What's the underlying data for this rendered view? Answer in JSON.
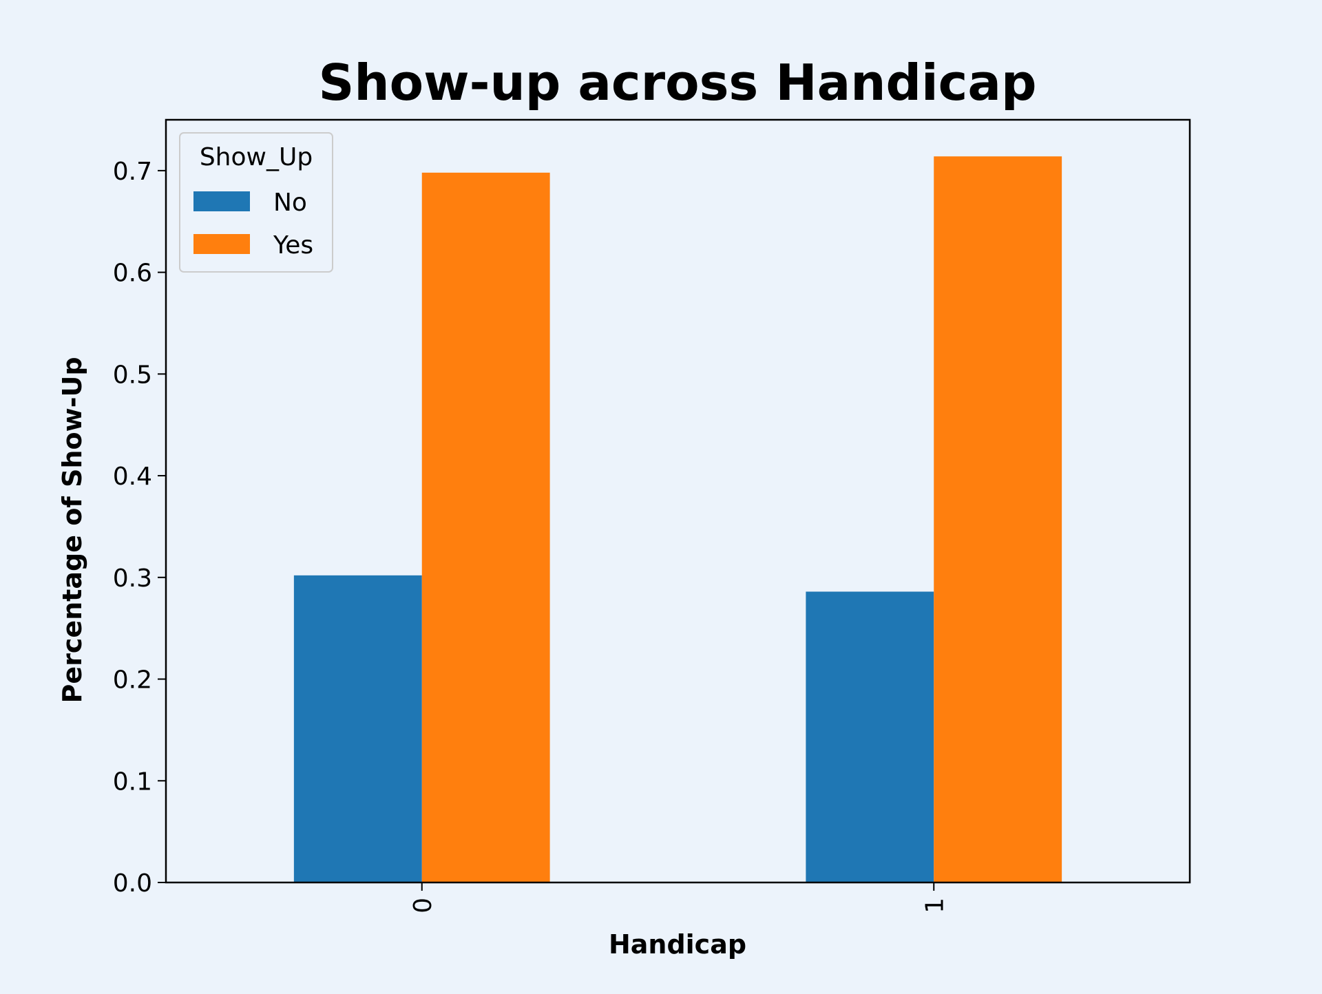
{
  "chart_data": {
    "type": "bar",
    "title": "Show-up across Handicap",
    "xlabel": "Handicap",
    "ylabel": "Percentage of Show-Up",
    "categories": [
      "0",
      "1"
    ],
    "series": [
      {
        "name": "No",
        "values": [
          0.302,
          0.286
        ],
        "color": "#1f77b4"
      },
      {
        "name": "Yes",
        "values": [
          0.698,
          0.714
        ],
        "color": "#ff7f0e"
      }
    ],
    "ylim": [
      0,
      0.75
    ],
    "yticks": [
      "0.0",
      "0.1",
      "0.2",
      "0.3",
      "0.4",
      "0.5",
      "0.6",
      "0.7"
    ],
    "xtick_rotation": "vertical",
    "legend": {
      "title": "Show_Up",
      "placement": "top-left"
    },
    "grid": false,
    "background": "#ecf3fb"
  }
}
